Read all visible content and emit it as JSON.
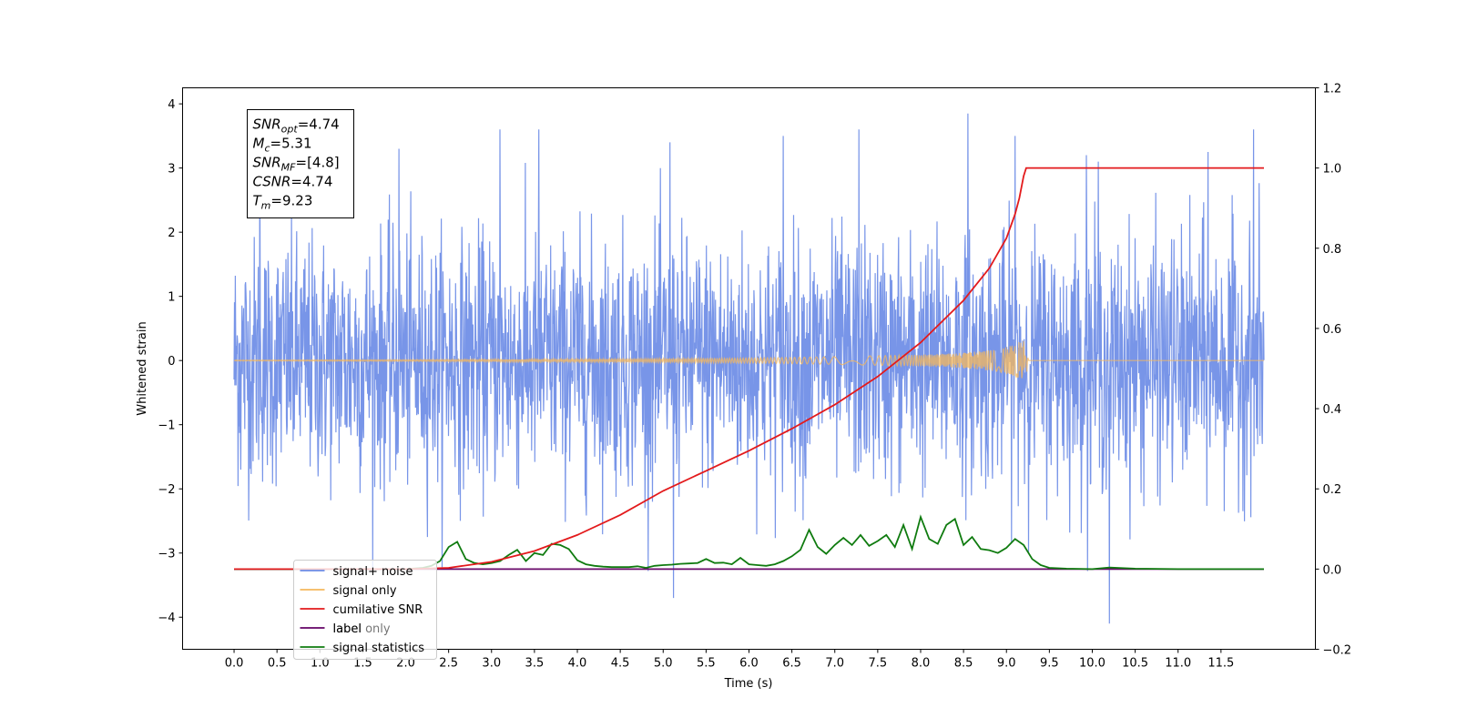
{
  "chart_data": {
    "type": "line",
    "xlabel": "Time (s)",
    "ylabel": "Whitened strain",
    "xlim": [
      -0.6,
      12.6
    ],
    "ylim": [
      -4.5,
      4.25
    ],
    "ylim_right": [
      -0.2,
      1.2
    ],
    "x_ticks": [
      "0.0",
      "0.5",
      "1.0",
      "1.5",
      "2.0",
      "2.5",
      "3.0",
      "3.5",
      "4.0",
      "4.5",
      "5.0",
      "5.5",
      "6.0",
      "6.5",
      "7.0",
      "7.5",
      "8.0",
      "8.5",
      "9.0",
      "9.5",
      "10.0",
      "10.5",
      "11.0",
      "11.5"
    ],
    "y_ticks_left": [
      "4",
      "3",
      "2",
      "1",
      "0",
      "−1",
      "−2",
      "−3",
      "−4"
    ],
    "y_ticks_right": [
      "1.2",
      "1.0",
      "0.8",
      "0.6",
      "0.4",
      "0.2",
      "0.0",
      "−0.2"
    ],
    "grid": false,
    "legend_position": "lower-left",
    "annotation": {
      "lines": [
        {
          "base": "SNR",
          "sub": "opt",
          "value": "=4.74"
        },
        {
          "base": "M",
          "sub": "c",
          "value": "=5.31"
        },
        {
          "base": "SNR",
          "sub": "MF",
          "value": "=[4.8]"
        },
        {
          "base": "CSNR",
          "sub": "",
          "value": "=4.74"
        },
        {
          "base": "T",
          "sub": "m",
          "value": "=9.23"
        }
      ]
    },
    "series": [
      {
        "name": "signal+ noise",
        "axis": "left",
        "color": "#6d8ce6",
        "x_range": [
          0.0,
          12.0
        ],
        "std": 0.95,
        "x_spikes": [
          0.08,
          0.3,
          1.92,
          3.1,
          3.55,
          5.08,
          5.12,
          6.4,
          7.28,
          8.55,
          9.1,
          9.93,
          10.07,
          10.2,
          11.35,
          11.88
        ],
        "y_spikes": [
          -1.7,
          3.6,
          3.3,
          3.6,
          3.6,
          3.4,
          -3.7,
          3.5,
          3.6,
          3.85,
          3.5,
          3.2,
          3.1,
          -4.1,
          3.25,
          3.6
        ],
        "extremes": {
          "max": 3.85,
          "min": -4.1
        }
      },
      {
        "name": "signal only",
        "axis": "left",
        "color": "#f5b85c",
        "x": [
          0.0,
          2.0,
          4.0,
          5.0,
          6.0,
          7.0,
          8.0,
          8.5,
          8.9,
          9.1,
          9.2,
          9.23,
          9.3,
          12.0
        ],
        "envelope": [
          0.005,
          0.01,
          0.02,
          0.03,
          0.04,
          0.06,
          0.09,
          0.12,
          0.17,
          0.25,
          0.33,
          0.0,
          0.0,
          0.0
        ]
      },
      {
        "name": "cumilative SNR",
        "axis": "right",
        "color": "#e31a1c",
        "x": [
          0.0,
          2.0,
          2.5,
          3.0,
          3.5,
          4.0,
          4.5,
          5.0,
          5.5,
          6.0,
          6.5,
          7.0,
          7.5,
          8.0,
          8.5,
          8.8,
          9.0,
          9.1,
          9.15,
          9.2,
          9.23,
          12.0
        ],
        "values": [
          0.0,
          0.0,
          0.003,
          0.018,
          0.045,
          0.085,
          0.135,
          0.195,
          0.245,
          0.295,
          0.35,
          0.41,
          0.48,
          0.565,
          0.67,
          0.75,
          0.825,
          0.885,
          0.925,
          0.98,
          1.0,
          1.0
        ]
      },
      {
        "name": "label only",
        "axis": "right",
        "color": "#c3b2d8",
        "x": [
          0.0,
          12.0
        ],
        "values": [
          0.0,
          0.0
        ]
      },
      {
        "name": "label",
        "axis": "right",
        "color": "#6a0a6a",
        "x": [
          0.0,
          12.0
        ],
        "values": [
          0.0,
          0.0
        ]
      },
      {
        "name": "signal statistics",
        "axis": "right",
        "color": "#0f7b0f",
        "x": [
          0.0,
          2.0,
          2.2,
          2.3,
          2.4,
          2.5,
          2.6,
          2.7,
          2.8,
          2.9,
          3.0,
          3.1,
          3.2,
          3.3,
          3.4,
          3.5,
          3.6,
          3.7,
          3.8,
          3.9,
          4.0,
          4.1,
          4.2,
          4.3,
          4.4,
          4.5,
          4.6,
          4.7,
          4.8,
          4.9,
          5.0,
          5.1,
          5.2,
          5.3,
          5.4,
          5.5,
          5.6,
          5.7,
          5.8,
          5.9,
          6.0,
          6.1,
          6.2,
          6.3,
          6.4,
          6.5,
          6.6,
          6.7,
          6.8,
          6.9,
          7.0,
          7.1,
          7.2,
          7.3,
          7.4,
          7.5,
          7.6,
          7.7,
          7.8,
          7.9,
          8.0,
          8.1,
          8.2,
          8.3,
          8.4,
          8.5,
          8.6,
          8.7,
          8.8,
          8.9,
          9.0,
          9.1,
          9.2,
          9.3,
          9.4,
          9.5,
          9.7,
          10.0,
          10.2,
          10.5,
          11.0,
          11.5,
          12.0
        ],
        "values": [
          0.0,
          0.0,
          0.003,
          0.008,
          0.02,
          0.055,
          0.068,
          0.025,
          0.015,
          0.012,
          0.015,
          0.02,
          0.035,
          0.048,
          0.02,
          0.04,
          0.035,
          0.063,
          0.06,
          0.05,
          0.022,
          0.012,
          0.008,
          0.006,
          0.005,
          0.005,
          0.005,
          0.007,
          0.003,
          0.008,
          0.01,
          0.011,
          0.013,
          0.014,
          0.015,
          0.025,
          0.015,
          0.016,
          0.012,
          0.028,
          0.012,
          0.01,
          0.008,
          0.012,
          0.02,
          0.032,
          0.048,
          0.098,
          0.055,
          0.038,
          0.06,
          0.078,
          0.06,
          0.085,
          0.058,
          0.07,
          0.085,
          0.055,
          0.11,
          0.05,
          0.13,
          0.075,
          0.063,
          0.11,
          0.125,
          0.06,
          0.08,
          0.05,
          0.047,
          0.04,
          0.053,
          0.075,
          0.06,
          0.025,
          0.01,
          0.003,
          0.001,
          0.0,
          0.004,
          0.001,
          0.0,
          0.0,
          0.0
        ]
      }
    ],
    "legend_order": [
      "signal+ noise",
      "signal only",
      "cumilative SNR",
      "label only",
      "label",
      "signal statistics"
    ]
  }
}
